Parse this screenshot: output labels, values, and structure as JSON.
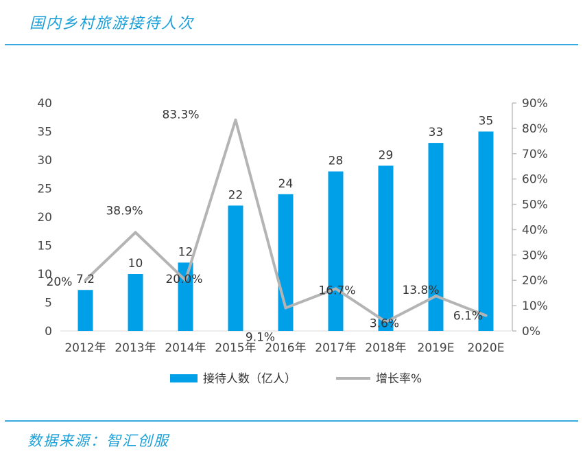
{
  "title": "国内乡村旅游接待人次",
  "source": "数据来源：智汇创服",
  "legend": {
    "bar_label": "接待人数（亿人）",
    "line_label": "增长率%"
  },
  "colors": {
    "bar": "#00a0e9",
    "line": "#b4b4b4",
    "accent": "#1a9fd8"
  },
  "chart_data": {
    "type": "bar",
    "categories": [
      "2012年",
      "2013年",
      "2014年",
      "2015年",
      "2016年",
      "2017年",
      "2018年",
      "2019E",
      "2020E"
    ],
    "series": [
      {
        "name": "接待人数（亿人）",
        "type": "bar",
        "axis": "left",
        "values": [
          7.2,
          10,
          12,
          22,
          24,
          28,
          29,
          33,
          35
        ],
        "labels": [
          "7.2",
          "10",
          "12",
          "22",
          "24",
          "28",
          "29",
          "33",
          "35"
        ]
      },
      {
        "name": "增长率%",
        "type": "line",
        "axis": "right",
        "values": [
          20,
          38.9,
          20.0,
          83.3,
          9.1,
          16.7,
          3.6,
          13.8,
          6.1
        ],
        "labels": [
          "20%",
          "38.9%",
          "20.0%",
          "83.3%",
          "9.1%",
          "16.7%",
          "3.6%",
          "13.8%",
          "6.1%"
        ]
      }
    ],
    "y_left": {
      "min": 0,
      "max": 40,
      "ticks": [
        "0",
        "5",
        "10",
        "15",
        "20",
        "25",
        "30",
        "35",
        "40"
      ]
    },
    "y_right": {
      "min": 0,
      "max": 90,
      "ticks": [
        "0%",
        "10%",
        "20%",
        "30%",
        "40%",
        "50%",
        "60%",
        "70%",
        "80%",
        "90%"
      ]
    },
    "legend_position": "bottom",
    "grid": false
  }
}
